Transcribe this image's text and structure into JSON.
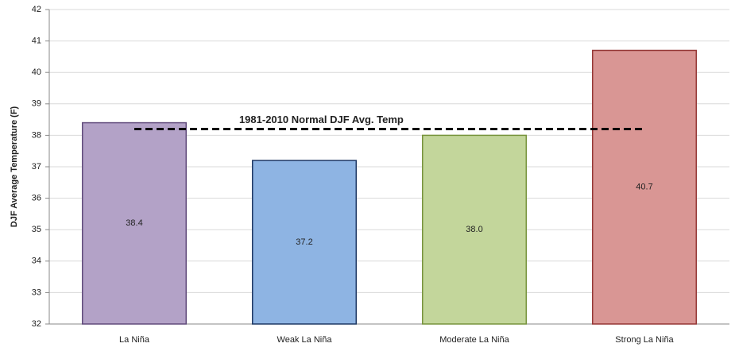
{
  "chart_data": {
    "type": "bar",
    "y_label": "DJF Average Temperature (F)",
    "categories": [
      "La Niña",
      "Weak La Niña",
      "Moderate La Niña",
      "Strong La Niña"
    ],
    "values": [
      38.4,
      37.2,
      38.0,
      40.7
    ],
    "value_labels": [
      "38.4",
      "37.2",
      "38.0",
      "40.7"
    ],
    "colors": [
      "#b3a2c7",
      "#8eb4e3",
      "#c3d69b",
      "#d99694"
    ],
    "edge_colors": [
      "#604a7b",
      "#1f3864",
      "#77933c",
      "#953735"
    ],
    "ylim": [
      32,
      42
    ],
    "yticks": [
      32,
      33,
      34,
      35,
      36,
      37,
      38,
      39,
      40,
      41,
      42
    ],
    "grid": true,
    "reference_line": {
      "label": "1981-2010 Normal DJF Avg. Temp",
      "value": 38.2
    }
  }
}
